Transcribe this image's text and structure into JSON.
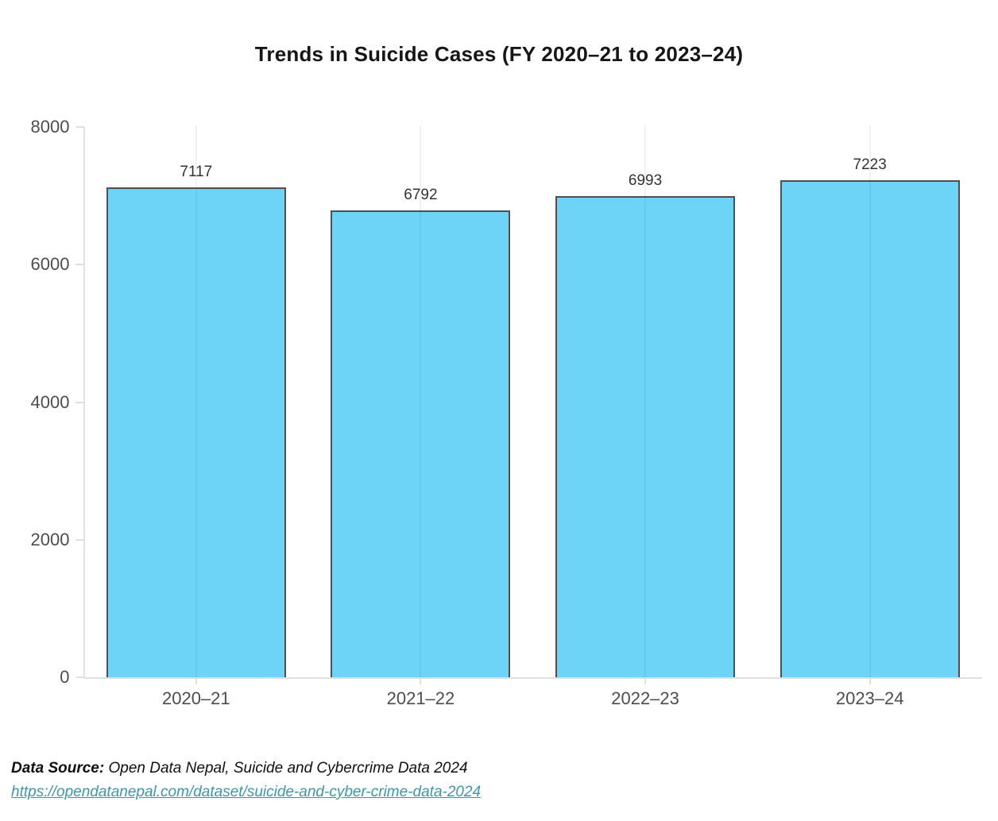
{
  "chart": {
    "title": "Trends in Suicide Cases (FY 2020–21 to 2023–24)"
  },
  "chart_data": {
    "type": "bar",
    "title": "Trends in Suicide Cases (FY 2020–21 to 2023–24)",
    "categories": [
      "2020–21",
      "2021–22",
      "2022–23",
      "2023–24"
    ],
    "values": [
      7117,
      6792,
      6993,
      7223
    ],
    "bar_labels": [
      "7117",
      "6792",
      "6993",
      "7223"
    ],
    "xlabel": "",
    "ylabel": "",
    "ylim": [
      0,
      8000
    ],
    "yticks": [
      0,
      2000,
      4000,
      6000,
      8000
    ],
    "ytick_labels": [
      "0",
      "2000",
      "4000",
      "6000",
      "8000"
    ],
    "grid": "vertical-lines-at-category-centers",
    "legend": "none",
    "colors": {
      "bar_fill": "#6DD4F7",
      "bar_border": "#4F4F4F",
      "axis_line": "#E3E3E3",
      "tick_text": "#4D4D4D",
      "value_text": "#333333",
      "title_text": "#161616"
    }
  },
  "footer": {
    "source_label": "Data Source:",
    "source_text": " Open Data Nepal, Suicide and Cybercrime Data 2024",
    "link": "https://opendatanepal.com/dataset/suicide-and-cyber-crime-data-2024",
    "link_color": "#3D97A8"
  }
}
